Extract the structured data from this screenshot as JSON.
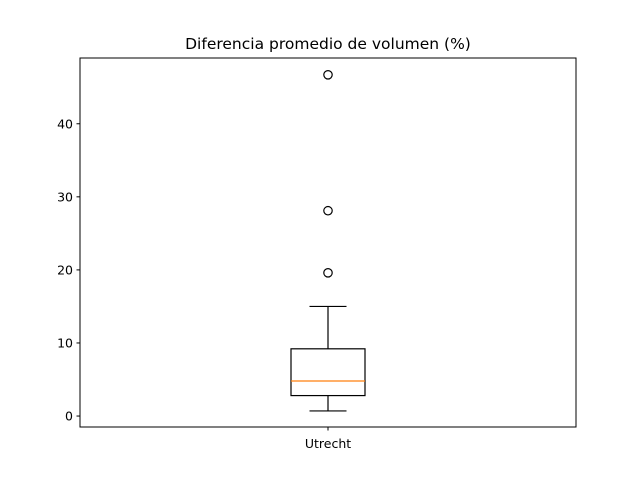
{
  "chart_data": {
    "type": "boxplot",
    "title": "Diferencia promedio de volumen (%)",
    "xlabel": "",
    "ylabel": "",
    "categories": [
      "Utrecht"
    ],
    "yticks": [
      0,
      10,
      20,
      30,
      40
    ],
    "ylim": [
      -1.5,
      49.0
    ],
    "grid": false,
    "legend": "none",
    "boxes": [
      {
        "label": "Utrecht",
        "whisker_low": 0.7,
        "q1": 2.8,
        "median": 4.8,
        "q3": 9.2,
        "whisker_high": 15.0,
        "outliers": [
          19.6,
          28.1,
          46.7
        ]
      }
    ],
    "colors": {
      "box": "#000000",
      "median": "#ff7f0e",
      "outlier": "#000000"
    }
  }
}
